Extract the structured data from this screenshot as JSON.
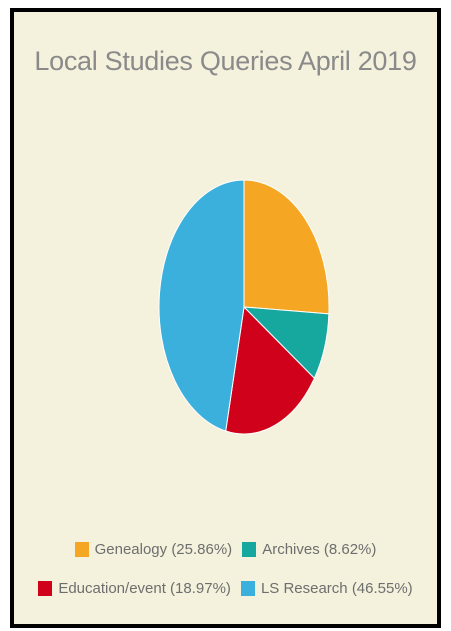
{
  "chart_data": {
    "type": "pie",
    "title": "Local Studies Queries April 2019",
    "slices": [
      {
        "label": "Genealogy",
        "value": 25.86,
        "display": "Genealogy (25.86%)",
        "color": "#f5a623"
      },
      {
        "label": "Archives",
        "value": 8.62,
        "display": "Archives (8.62%)",
        "color": "#16a89e"
      },
      {
        "label": "Education/event",
        "value": 18.97,
        "display": "Education/event (18.97%)",
        "color": "#d0021b"
      },
      {
        "label": "LS Research",
        "value": 46.55,
        "display": "LS Research (46.55%)",
        "color": "#3bb0dc"
      }
    ],
    "legend_position": "bottom"
  },
  "background_color": "#f4f2dd"
}
